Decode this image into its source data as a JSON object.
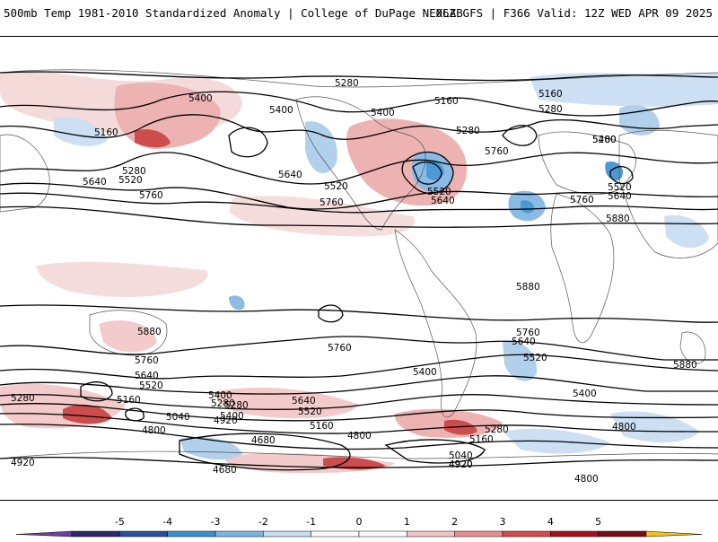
{
  "header": {
    "title_left": "500mb Temp 1981-2010 Standardized Anomaly | College of DuPage NEXLAB",
    "title_right": "06Z GFS | F366 Valid: 12Z WED APR 09 2025"
  },
  "map": {
    "contour_labels": [
      {
        "id": "c1",
        "text": "5280"
      },
      {
        "id": "c2",
        "text": "5400"
      },
      {
        "id": "c3",
        "text": "5160"
      },
      {
        "id": "c4",
        "text": "5280"
      },
      {
        "id": "c5",
        "text": "5640"
      },
      {
        "id": "c6",
        "text": "5520"
      },
      {
        "id": "c7",
        "text": "5760"
      },
      {
        "id": "c8",
        "text": "5400"
      },
      {
        "id": "c9",
        "text": "5280"
      },
      {
        "id": "c10",
        "text": "5400"
      },
      {
        "id": "c11",
        "text": "5160"
      },
      {
        "id": "c12",
        "text": "5280"
      },
      {
        "id": "c13",
        "text": "5640"
      },
      {
        "id": "c14",
        "text": "5520"
      },
      {
        "id": "c15",
        "text": "5760"
      },
      {
        "id": "c16",
        "text": "5520"
      },
      {
        "id": "c17",
        "text": "5640"
      },
      {
        "id": "c18",
        "text": "5760"
      },
      {
        "id": "c19",
        "text": "5160"
      },
      {
        "id": "c20",
        "text": "5280"
      },
      {
        "id": "c21",
        "text": "5400"
      },
      {
        "id": "c22",
        "text": "5520"
      },
      {
        "id": "c23",
        "text": "5640"
      },
      {
        "id": "c24",
        "text": "5760"
      },
      {
        "id": "c25",
        "text": "5880"
      },
      {
        "id": "c26",
        "text": "5880"
      },
      {
        "id": "c27",
        "text": "5880"
      },
      {
        "id": "c28",
        "text": "5760"
      },
      {
        "id": "c29",
        "text": "5760"
      },
      {
        "id": "c30",
        "text": "5640"
      },
      {
        "id": "c31",
        "text": "5520"
      },
      {
        "id": "c32",
        "text": "5280"
      },
      {
        "id": "c33",
        "text": "5160"
      },
      {
        "id": "c34",
        "text": "5040"
      },
      {
        "id": "c35",
        "text": "4920"
      },
      {
        "id": "c36",
        "text": "4800"
      },
      {
        "id": "c37",
        "text": "5400"
      },
      {
        "id": "c38",
        "text": "5280"
      },
      {
        "id": "c39",
        "text": "5640"
      },
      {
        "id": "c40",
        "text": "5520"
      },
      {
        "id": "c41",
        "text": "5160"
      },
      {
        "id": "c42",
        "text": "4680"
      },
      {
        "id": "c43",
        "text": "4800"
      },
      {
        "id": "c44",
        "text": "4920"
      },
      {
        "id": "c45",
        "text": "4680"
      },
      {
        "id": "c46",
        "text": "5400"
      },
      {
        "id": "c47",
        "text": "5760"
      },
      {
        "id": "c48",
        "text": "5640"
      },
      {
        "id": "c49",
        "text": "5520"
      },
      {
        "id": "c50",
        "text": "5280"
      },
      {
        "id": "c51",
        "text": "5160"
      },
      {
        "id": "c52",
        "text": "5040"
      },
      {
        "id": "c53",
        "text": "4920"
      },
      {
        "id": "c54",
        "text": "4800"
      },
      {
        "id": "c55",
        "text": "5400"
      },
      {
        "id": "c56",
        "text": "4800"
      },
      {
        "id": "c57",
        "text": "5880"
      },
      {
        "id": "c58",
        "text": "4920"
      },
      {
        "id": "c59",
        "text": "5400"
      },
      {
        "id": "c60",
        "text": "5280"
      }
    ]
  },
  "colorbar": {
    "ticks": [
      "-5",
      "-4",
      "-3",
      "-2",
      "-1",
      "0",
      "1",
      "2",
      "3",
      "4",
      "5"
    ],
    "colors": [
      "#2a2a6a",
      "#2c4f9a",
      "#3a8fd0",
      "#7db4e2",
      "#c8dcf2",
      "#ffffff",
      "#ffffff",
      "#f2c6c6",
      "#e88d8d",
      "#d94a4a",
      "#a80f1f",
      "#7a0d15"
    ],
    "under_color": "#6a3fa0",
    "over_color": "#f2c21a"
  }
}
